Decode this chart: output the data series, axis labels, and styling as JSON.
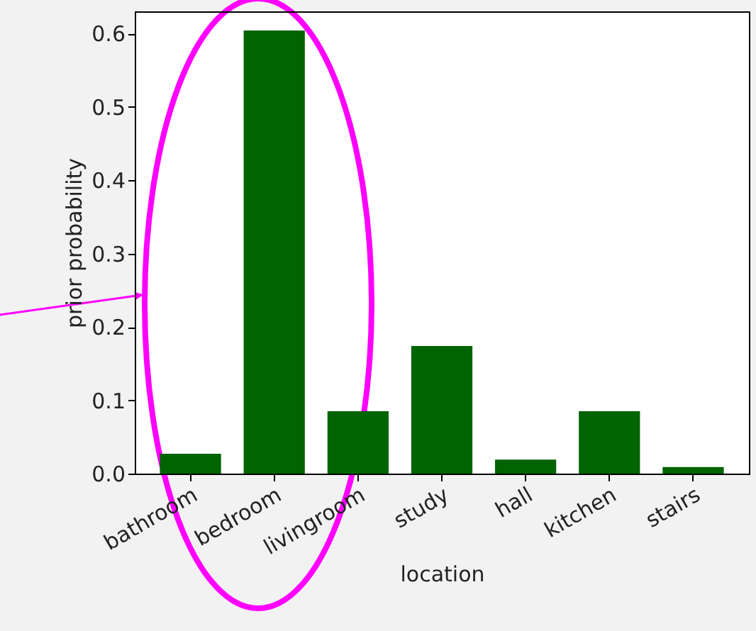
{
  "chart_data": {
    "type": "bar",
    "xlabel": "location",
    "ylabel": "prior probability",
    "categories": [
      "bathroom",
      "bedroom",
      "livingroom",
      "study",
      "hall",
      "kitchen",
      "stairs"
    ],
    "values": [
      0.027,
      0.604,
      0.085,
      0.174,
      0.019,
      0.085,
      0.009
    ],
    "color": "#006400",
    "ylim": [
      0,
      0.63
    ],
    "yticks": [
      {
        "value": 0,
        "label": "0.0"
      },
      0.1,
      0.2,
      0.3,
      0.4,
      0.5,
      0.6
    ],
    "grid": false
  }
}
